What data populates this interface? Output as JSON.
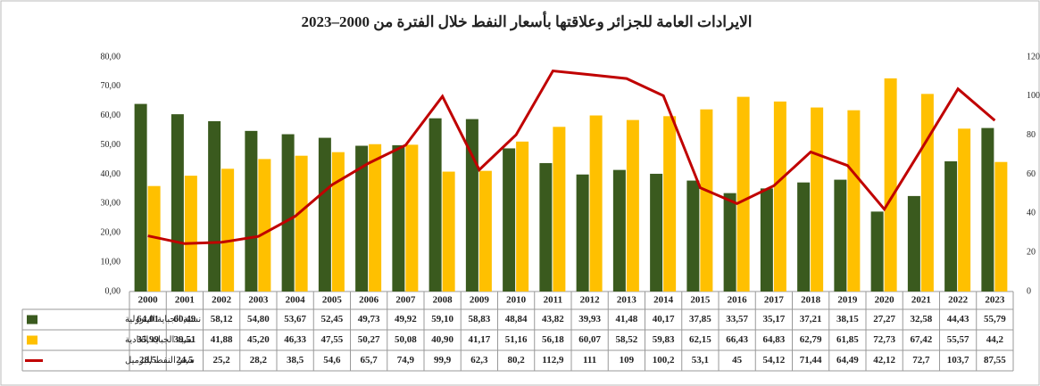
{
  "chart_data": {
    "type": "bar",
    "title": "الايرادات العامة للجزائر وعلاقتها بأسعار النفط خلال الفترة من 2000–2023",
    "categories": [
      "2000",
      "2001",
      "2002",
      "2003",
      "2004",
      "2005",
      "2006",
      "2007",
      "2008",
      "2009",
      "2010",
      "2011",
      "2012",
      "2013",
      "2014",
      "2015",
      "2016",
      "2017",
      "2018",
      "2019",
      "2020",
      "2021",
      "2022",
      "2023"
    ],
    "ylim": [
      0,
      80
    ],
    "yticks": [
      {
        "value": 0,
        "label": "0,00"
      },
      {
        "value": 10,
        "label": "10,00"
      },
      {
        "value": 20,
        "label": "20,00"
      },
      {
        "value": 30,
        "label": "30,00"
      },
      {
        "value": 40,
        "label": "40,00"
      },
      {
        "value": 50,
        "label": "50,00"
      },
      {
        "value": 60,
        "label": "60,00"
      },
      {
        "value": 70,
        "label": "70,00"
      },
      {
        "value": 80,
        "label": "80,00"
      }
    ],
    "y2lim": [
      0,
      120
    ],
    "y2ticks": [
      0,
      20,
      40,
      60,
      80,
      100,
      120
    ],
    "series": [
      {
        "name": "نسبة الجباية البترولية",
        "color": "#3a5a1e",
        "type": "bar",
        "values": [
          64.01,
          60.49,
          58.12,
          54.8,
          53.67,
          52.45,
          49.73,
          49.92,
          59.1,
          58.83,
          48.84,
          43.82,
          39.93,
          41.48,
          40.17,
          37.85,
          33.57,
          35.17,
          37.21,
          38.15,
          27.27,
          32.58,
          44.43,
          55.79
        ],
        "value_labels": [
          "64,01",
          "60,49",
          "58,12",
          "54,80",
          "53,67",
          "52,45",
          "49,73",
          "49,92",
          "59,10",
          "58,83",
          "48,84",
          "43,82",
          "39,93",
          "41,48",
          "40,17",
          "37,85",
          "33,57",
          "35,17",
          "37,21",
          "38,15",
          "27,27",
          "32,58",
          "44,43",
          "55,79"
        ]
      },
      {
        "name": "نسبة الجباية العادية",
        "color": "#ffc000",
        "type": "bar",
        "values": [
          35.99,
          39.51,
          41.88,
          45.2,
          46.33,
          47.55,
          50.27,
          50.08,
          40.9,
          41.17,
          51.16,
          56.18,
          60.07,
          58.52,
          59.83,
          62.15,
          66.43,
          64.83,
          62.79,
          61.85,
          72.73,
          67.42,
          55.57,
          44.2
        ],
        "value_labels": [
          "35,99",
          "39,51",
          "41,88",
          "45,20",
          "46,33",
          "47,55",
          "50,27",
          "50,08",
          "40,90",
          "41,17",
          "51,16",
          "56,18",
          "60,07",
          "58,52",
          "59,83",
          "62,15",
          "66,43",
          "64,83",
          "62,79",
          "61,85",
          "72,73",
          "67,42",
          "55,57",
          "44,2"
        ]
      },
      {
        "name": "سعر النفط للبرميل",
        "color": "#c00000",
        "type": "line",
        "axis": "y2",
        "values": [
          28.5,
          24.5,
          25.2,
          28.2,
          38.5,
          54.6,
          65.7,
          74.9,
          99.9,
          62.3,
          80.2,
          112.9,
          111,
          109,
          100.2,
          53.1,
          45,
          54.12,
          71.44,
          64.49,
          42.12,
          72.7,
          103.7,
          87.55
        ],
        "value_labels": [
          "28,5",
          "24,5",
          "25,2",
          "28,2",
          "38,5",
          "54,6",
          "65,7",
          "74,9",
          "99,9",
          "62,3",
          "80,2",
          "112,9",
          "111",
          "109",
          "100,2",
          "53,1",
          "45",
          "54,12",
          "71,44",
          "64,49",
          "42,12",
          "72,7",
          "103,7",
          "87,55"
        ]
      }
    ]
  }
}
